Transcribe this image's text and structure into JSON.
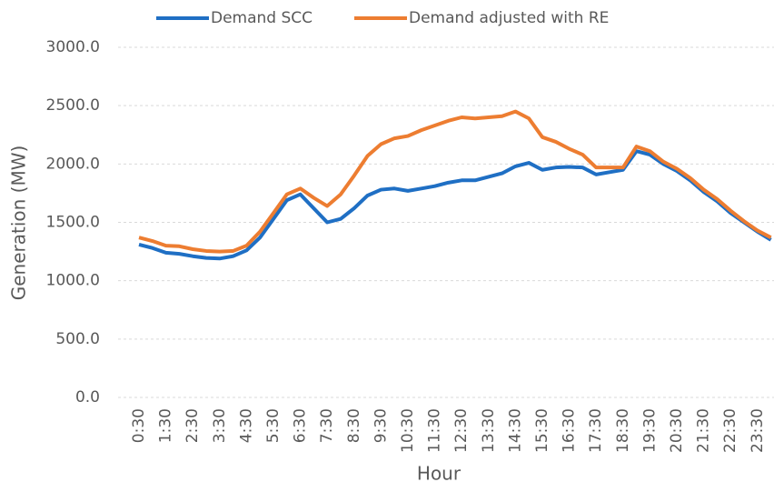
{
  "chart_data": {
    "type": "line",
    "x_label": "Hour",
    "y_label": "Generation (MW)",
    "categories": [
      "0:30",
      null,
      "1:30",
      null,
      "2:30",
      null,
      "3:30",
      null,
      "4:30",
      null,
      "5:30",
      null,
      "6:30",
      null,
      "7:30",
      null,
      "8:30",
      null,
      "9:30",
      null,
      "10:30",
      null,
      "11:30",
      null,
      "12:30",
      null,
      "13:30",
      null,
      "14:30",
      null,
      "15:30",
      null,
      "16:30",
      null,
      "17:30",
      null,
      "18:30",
      null,
      "19:30",
      null,
      "20:30",
      null,
      "21:30",
      null,
      "22:30",
      null,
      "23:30",
      null
    ],
    "series": [
      {
        "name": "Demand SCC",
        "color": "#1f6fc4",
        "values": [
          1310,
          1280,
          1240,
          1230,
          1210,
          1195,
          1190,
          1210,
          1260,
          1370,
          1530,
          1690,
          1740,
          1620,
          1500,
          1530,
          1620,
          1730,
          1780,
          1790,
          1770,
          1790,
          1810,
          1840,
          1860,
          1860,
          1890,
          1920,
          1980,
          2010,
          1950,
          1970,
          1975,
          1970,
          1910,
          1930,
          1950,
          2110,
          2080,
          2000,
          1940,
          1860,
          1760,
          1680,
          1580,
          1500,
          1420,
          1350
        ]
      },
      {
        "name": "Demand adjusted with RE",
        "color": "#ed7d31",
        "values": [
          1370,
          1340,
          1300,
          1295,
          1270,
          1255,
          1250,
          1255,
          1300,
          1420,
          1580,
          1740,
          1790,
          1710,
          1640,
          1740,
          1900,
          2070,
          2170,
          2220,
          2240,
          2290,
          2330,
          2370,
          2400,
          2390,
          2400,
          2410,
          2450,
          2390,
          2230,
          2190,
          2130,
          2080,
          1970,
          1970,
          1970,
          2150,
          2110,
          2020,
          1960,
          1880,
          1780,
          1700,
          1600,
          1510,
          1430,
          1370
        ]
      }
    ],
    "ylim": [
      0,
      3000
    ],
    "yticks": [
      {
        "value": 0,
        "label": "0.0"
      },
      {
        "value": 500,
        "label": "500.0"
      },
      {
        "value": 1000,
        "label": "1000.0"
      },
      {
        "value": 1500,
        "label": "1500.0"
      },
      {
        "value": 2000,
        "label": "2000.0"
      },
      {
        "value": 2500,
        "label": "2500.0"
      },
      {
        "value": 3000,
        "label": "3000.0"
      }
    ],
    "grid": true,
    "legend": "top"
  }
}
